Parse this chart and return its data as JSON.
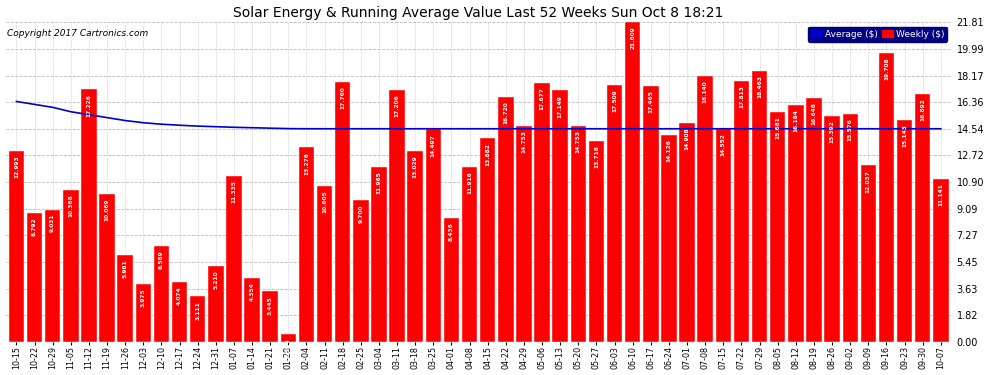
{
  "title": "Solar Energy & Running Average Value Last 52 Weeks Sun Oct 8 18:21",
  "copyright": "Copyright 2017 Cartronics.com",
  "ylim": [
    0,
    21.81
  ],
  "yticks": [
    0.0,
    1.82,
    3.63,
    5.45,
    7.27,
    9.09,
    10.9,
    12.72,
    14.54,
    16.36,
    18.17,
    19.99,
    21.81
  ],
  "bar_color": "#ff0000",
  "avg_color": "#0000cc",
  "background_color": "#ffffff",
  "grid_color": "#cccccc",
  "legend_avg_color": "#0000cc",
  "legend_bar_color": "#ff0000",
  "categories": [
    "10-15",
    "10-22",
    "10-29",
    "11-05",
    "11-12",
    "11-19",
    "11-26",
    "12-03",
    "12-10",
    "12-17",
    "12-24",
    "12-31",
    "01-07",
    "01-14",
    "01-21",
    "01-28",
    "02-04",
    "02-11",
    "02-18",
    "02-25",
    "03-04",
    "03-11",
    "03-18",
    "03-25",
    "04-01",
    "04-08",
    "04-15",
    "04-22",
    "04-29",
    "05-06",
    "05-13",
    "05-20",
    "05-27",
    "06-03",
    "06-10",
    "06-17",
    "06-24",
    "07-01",
    "07-08",
    "07-15",
    "07-22",
    "07-29",
    "08-05",
    "08-12",
    "08-19",
    "08-26",
    "09-02",
    "09-09",
    "09-16",
    "09-23",
    "09-30",
    "10-07"
  ],
  "weekly_values": [
    12.993,
    8.792,
    9.031,
    10.368,
    17.226,
    10.069,
    5.961,
    3.975,
    6.569,
    4.074,
    3.111,
    5.21,
    11.335,
    4.354,
    3.445,
    0.554,
    13.276,
    10.605,
    17.76,
    9.7,
    11.965,
    17.206,
    13.029,
    14.497,
    8.436,
    11.916,
    13.882,
    16.72,
    14.753,
    17.677,
    17.149,
    14.753,
    13.718,
    17.509,
    21.809,
    17.465,
    14.126,
    14.908,
    18.14,
    14.552,
    17.813,
    18.463,
    15.681,
    16.184,
    16.648,
    15.392,
    15.576,
    12.037,
    19.708,
    15.143,
    16.892,
    11.141
  ],
  "avg_values": [
    16.4,
    16.2,
    16.0,
    15.7,
    15.5,
    15.3,
    15.1,
    14.95,
    14.85,
    14.78,
    14.72,
    14.68,
    14.64,
    14.61,
    14.58,
    14.55,
    14.54,
    14.54,
    14.54,
    14.54,
    14.54,
    14.54,
    14.54,
    14.54,
    14.54,
    14.54,
    14.54,
    14.54,
    14.54,
    14.54,
    14.54,
    14.54,
    14.54,
    14.54,
    14.54,
    14.54,
    14.54,
    14.54,
    14.54,
    14.54,
    14.54,
    14.54,
    14.54,
    14.54,
    14.54,
    14.54,
    14.54,
    14.54,
    14.54,
    14.54,
    14.54,
    14.54
  ]
}
